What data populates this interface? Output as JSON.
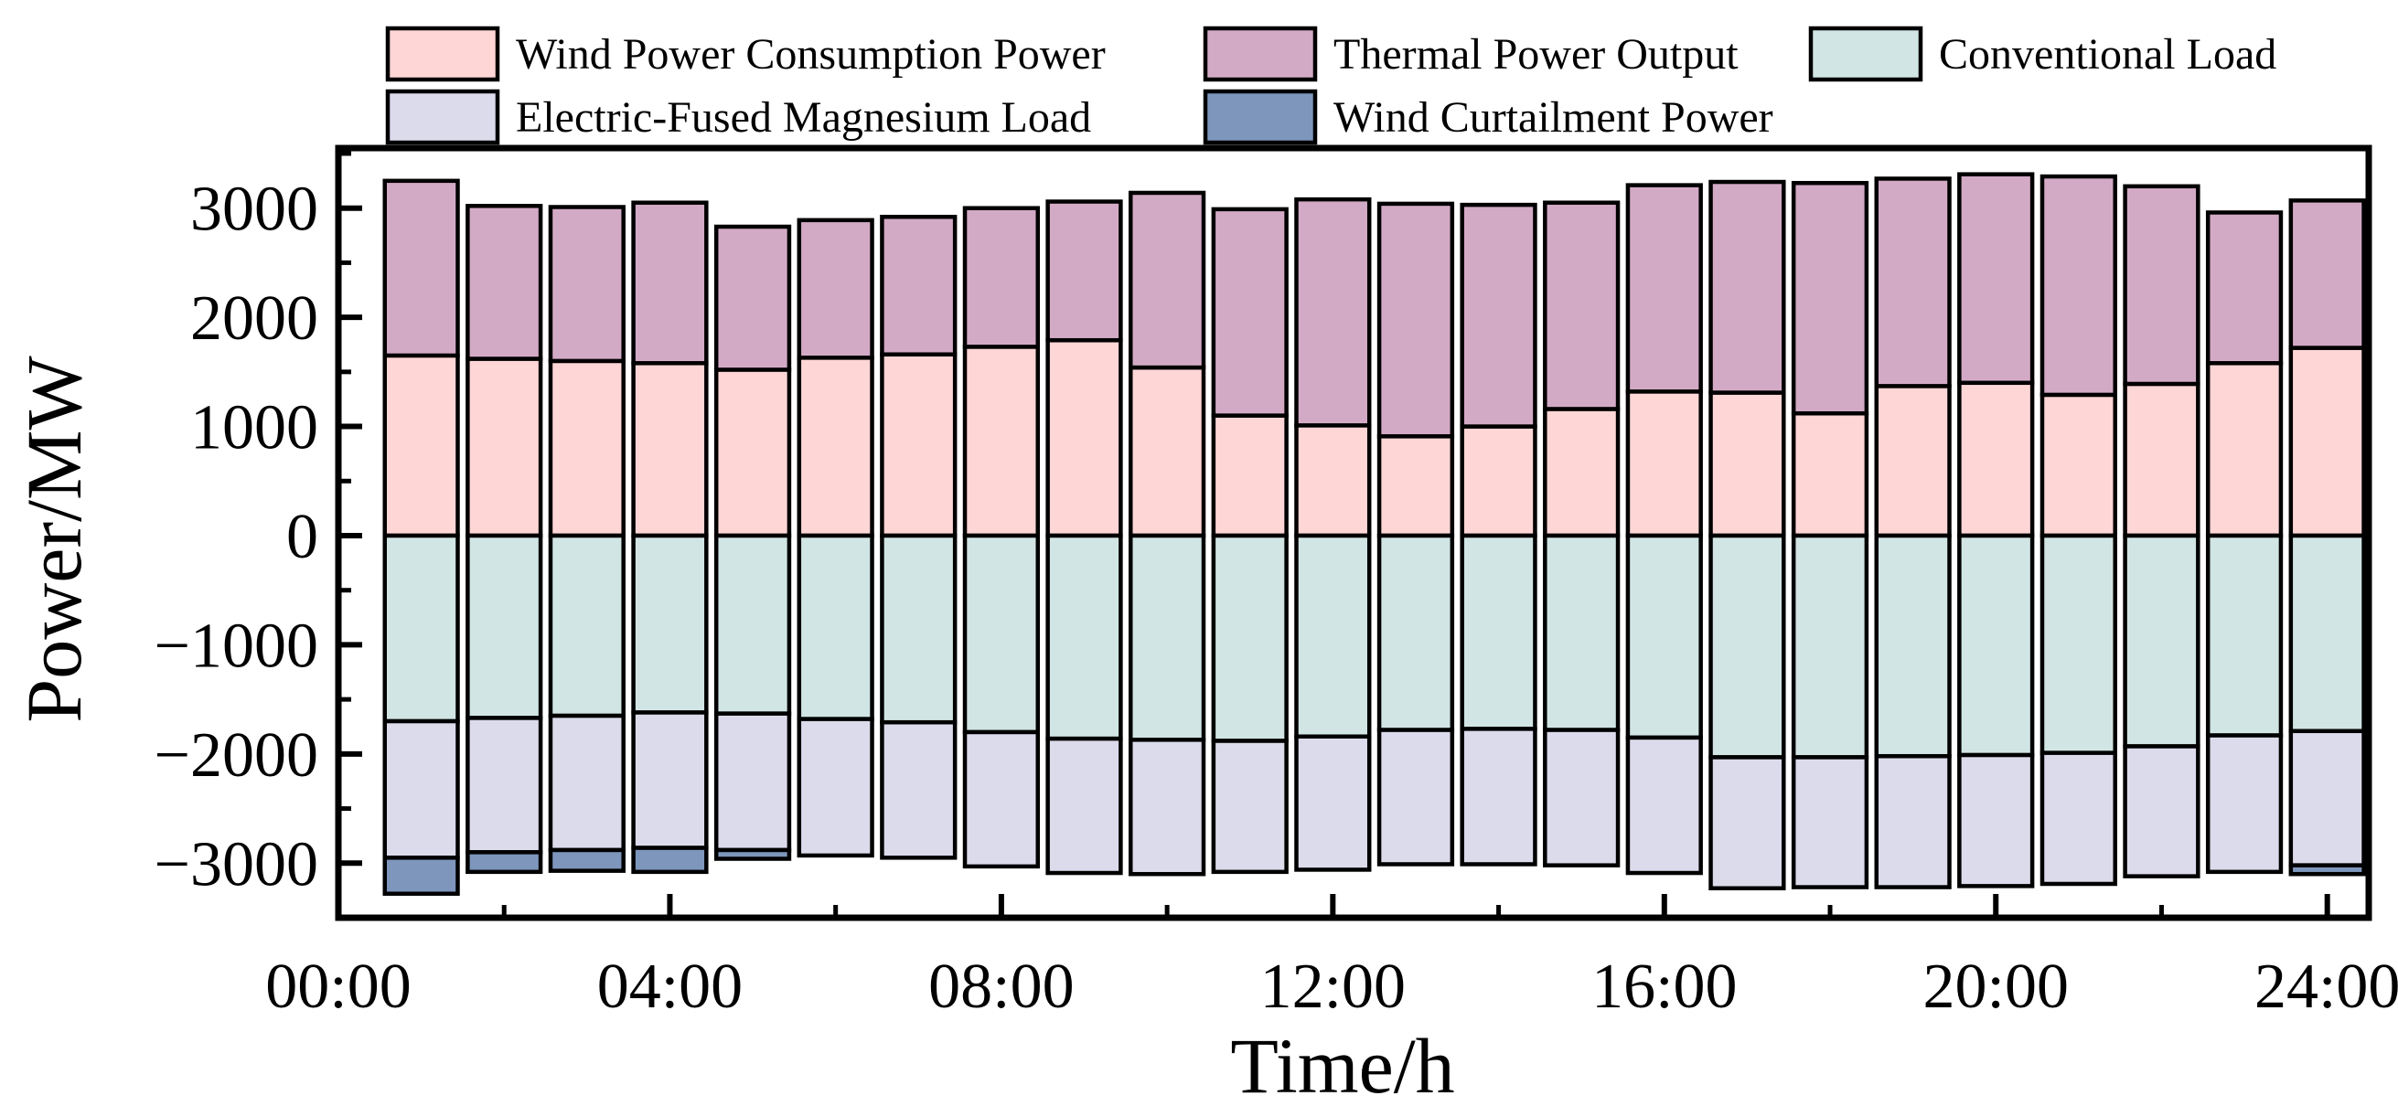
{
  "chart_data": {
    "type": "bar",
    "stacked": true,
    "xlabel": "Time/h",
    "ylabel": "Power/MW",
    "ylim": [
      -3500,
      3550
    ],
    "yticks": [
      -3000,
      -2000,
      -1000,
      0,
      1000,
      2000,
      3000
    ],
    "ytick_labels": [
      "−3000",
      "−2000",
      "−1000",
      "0",
      "1000",
      "2000",
      "3000"
    ],
    "xticks": [
      0,
      4,
      8,
      12,
      16,
      20,
      24
    ],
    "xtick_labels": [
      "00:00",
      "04:00",
      "08:00",
      "12:00",
      "16:00",
      "20:00",
      "24:00"
    ],
    "xlim": [
      0,
      24.5
    ],
    "hours": [
      1,
      2,
      3,
      4,
      5,
      6,
      7,
      8,
      9,
      10,
      11,
      12,
      13,
      14,
      15,
      16,
      17,
      18,
      19,
      20,
      21,
      22,
      23,
      24
    ],
    "series": [
      {
        "name": "Wind Power Consumption Power",
        "color": "#FFD6D6",
        "values": [
          1650,
          1620,
          1600,
          1580,
          1520,
          1630,
          1660,
          1730,
          1790,
          1540,
          1100,
          1010,
          910,
          1000,
          1160,
          1320,
          1310,
          1120,
          1370,
          1400,
          1290,
          1390,
          1580,
          1720
        ]
      },
      {
        "name": "Thermal Power Output",
        "color": "#D3AAC6",
        "values": [
          1600,
          1400,
          1410,
          1470,
          1310,
          1260,
          1260,
          1270,
          1270,
          1600,
          1890,
          2070,
          2130,
          2030,
          1890,
          1890,
          1930,
          2110,
          1900,
          1910,
          2000,
          1810,
          1380,
          1350
        ]
      },
      {
        "name": "Conventional Load",
        "color": "#D1E5E4",
        "values": [
          -1700,
          -1670,
          -1650,
          -1620,
          -1630,
          -1680,
          -1710,
          -1800,
          -1860,
          -1870,
          -1880,
          -1840,
          -1780,
          -1770,
          -1780,
          -1850,
          -2030,
          -2030,
          -2020,
          -2010,
          -1990,
          -1930,
          -1830,
          -1790
        ]
      },
      {
        "name": "Electric-Fused Magnesium Load",
        "color": "#DCDBEC",
        "values": [
          -1250,
          -1230,
          -1230,
          -1240,
          -1250,
          -1250,
          -1240,
          -1230,
          -1230,
          -1230,
          -1200,
          -1220,
          -1230,
          -1240,
          -1240,
          -1240,
          -1200,
          -1190,
          -1200,
          -1200,
          -1200,
          -1190,
          -1250,
          -1230
        ]
      },
      {
        "name": "Wind Curtailment Power",
        "color": "#7E96BC",
        "values": [
          -330,
          -180,
          -190,
          -220,
          -80,
          0,
          0,
          0,
          0,
          0,
          0,
          0,
          0,
          0,
          0,
          0,
          0,
          0,
          0,
          0,
          0,
          0,
          0,
          -80
        ]
      }
    ]
  }
}
